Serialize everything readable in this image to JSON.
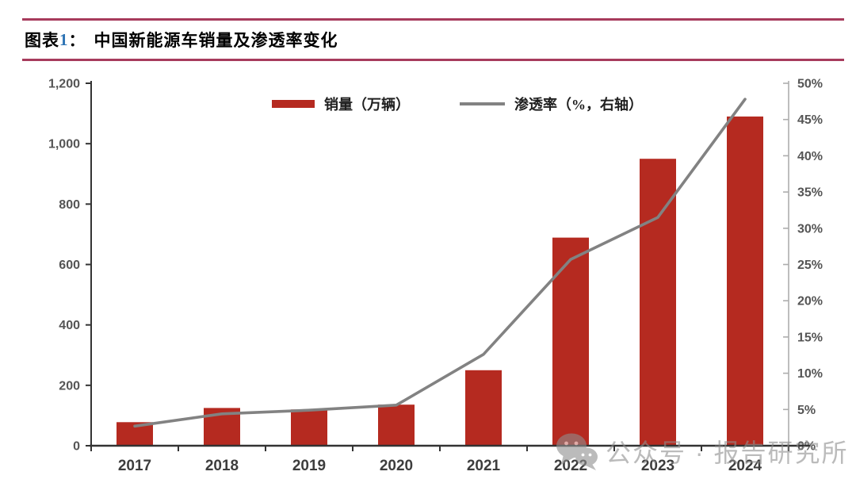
{
  "header": {
    "prefix": "图表",
    "number": "1",
    "separator": "：",
    "title": "中国新能源车销量及渗透率变化"
  },
  "legend": {
    "sales": "销量（万辆）",
    "penetration": "渗透率（%，右轴）"
  },
  "watermark": {
    "icon": "wechat-icon",
    "text": "公众号 · 报告研究所"
  },
  "colors": {
    "bar": "#B52A20",
    "line": "#828282",
    "rule": "#A73B5C",
    "axis_dark": "#333333",
    "axis_light": "#ADADAD",
    "tick_label": "#555555",
    "x_label": "#3D3D3D",
    "title_number": "#2E74B5",
    "watermark": "#8F8F8F"
  },
  "chart_data": {
    "type": "bar",
    "title": "中国新能源车销量及渗透率变化",
    "categories": [
      "2017",
      "2018",
      "2019",
      "2020",
      "2021",
      "2022",
      "2023",
      "2024"
    ],
    "series": [
      {
        "name": "销量（万辆）",
        "type": "bar",
        "axis": "left",
        "values": [
          78,
          125,
          120,
          136,
          250,
          689,
          950,
          1090
        ]
      },
      {
        "name": "渗透率（%，右轴）",
        "type": "line",
        "axis": "right",
        "values": [
          2.7,
          4.4,
          4.9,
          5.6,
          12.6,
          25.7,
          31.5,
          47.8
        ]
      }
    ],
    "left_axis": {
      "min": 0,
      "max": 1200,
      "step": 200,
      "tick_labels": [
        "0",
        "200",
        "400",
        "600",
        "800",
        "1,000",
        "1,200"
      ]
    },
    "right_axis": {
      "min": 0,
      "max": 50,
      "step": 5,
      "tick_labels": [
        "0%",
        "5%",
        "10%",
        "15%",
        "20%",
        "25%",
        "30%",
        "35%",
        "40%",
        "45%",
        "50%"
      ]
    },
    "legend_position": "top-center",
    "grid": false
  }
}
